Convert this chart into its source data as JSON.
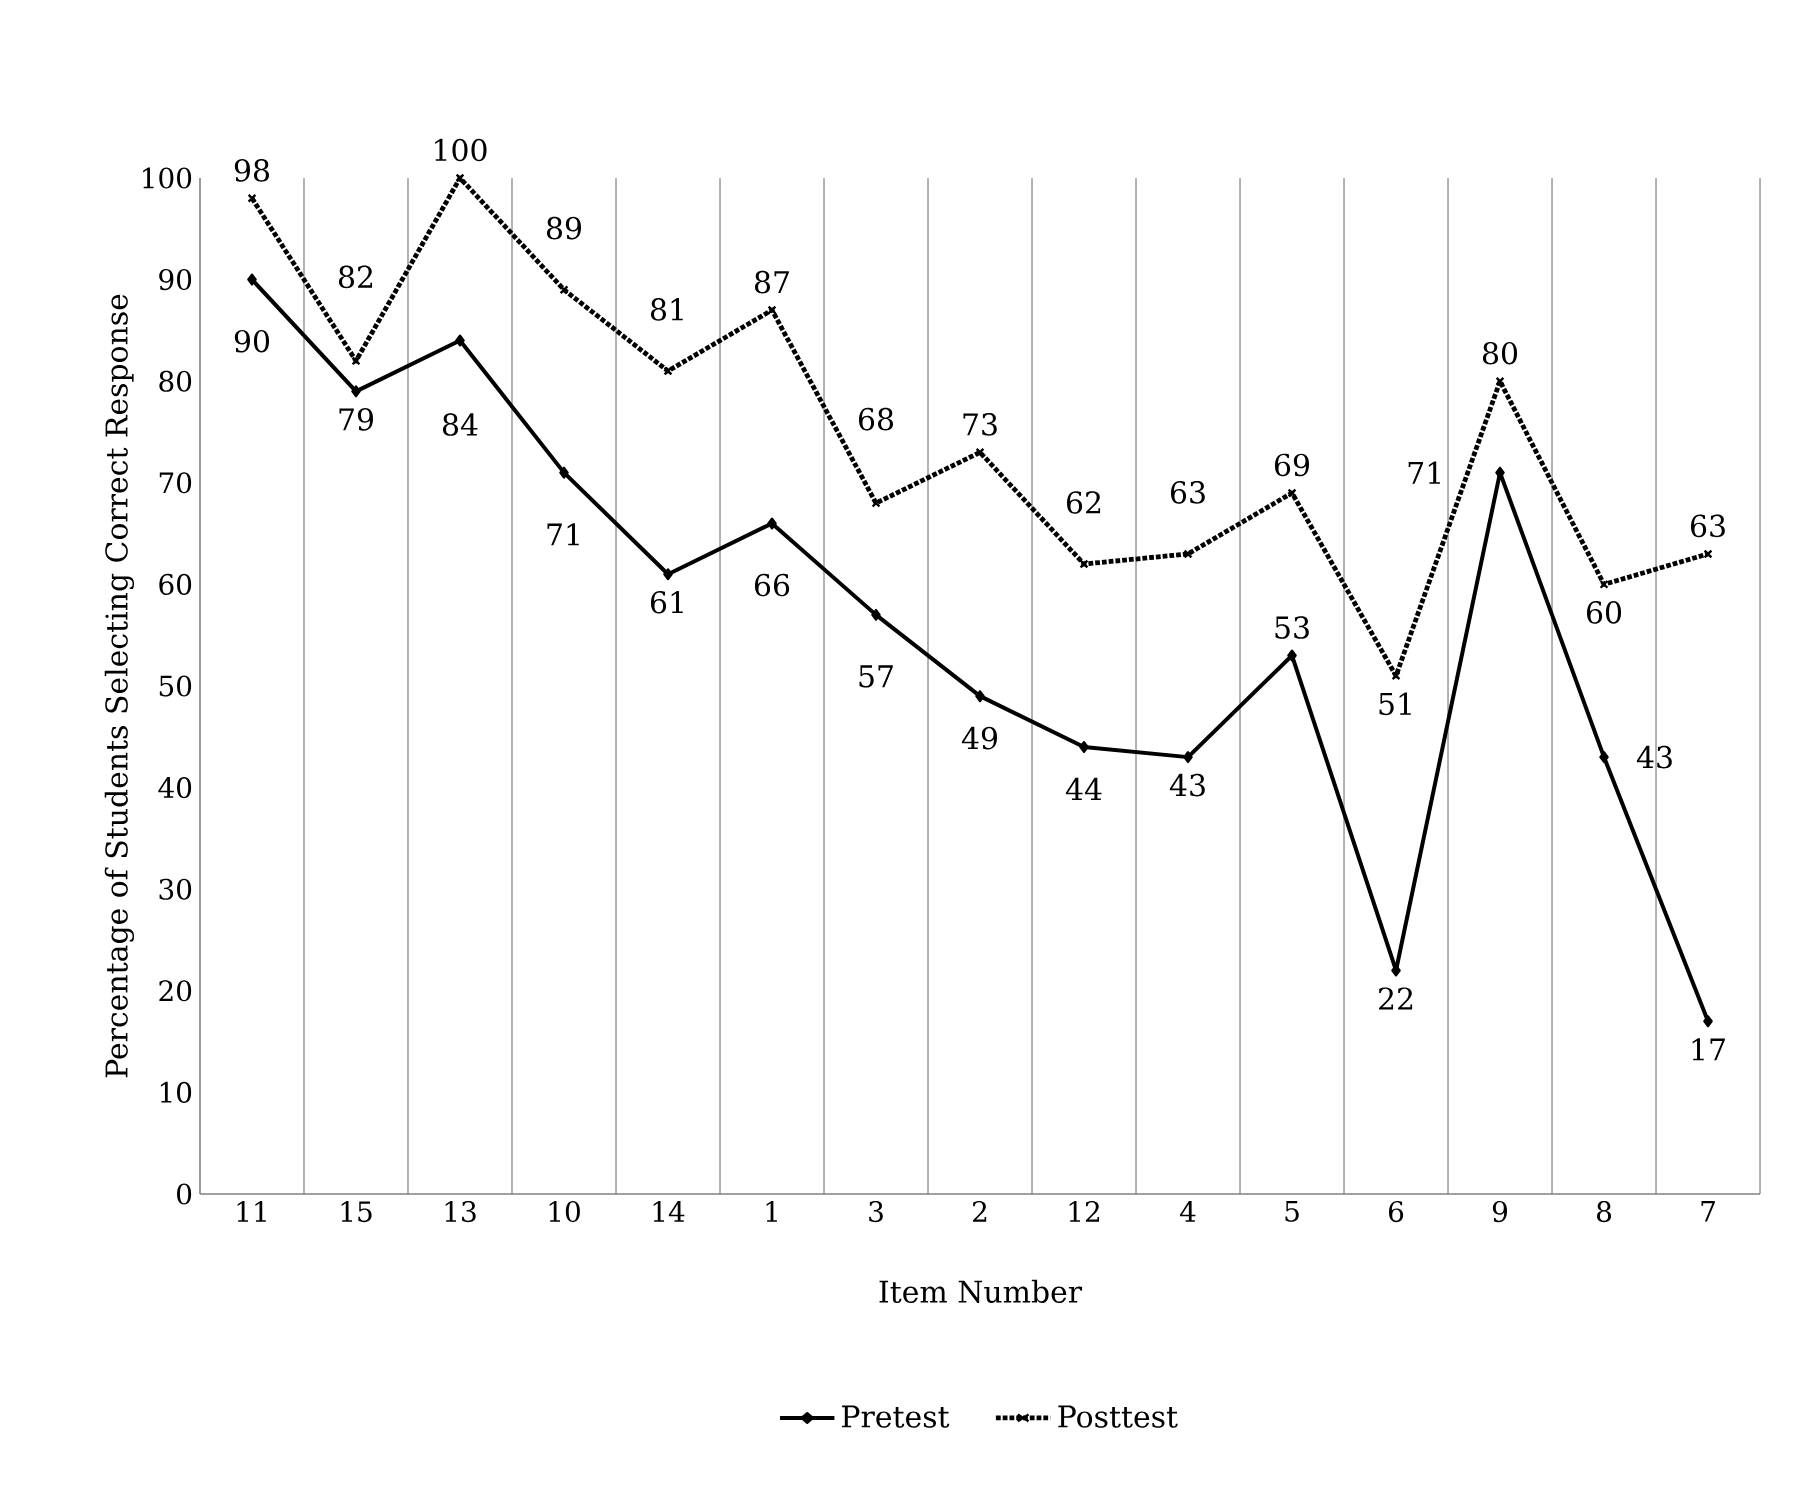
{
  "chart_data": {
    "type": "line",
    "xlabel": "Item Number",
    "ylabel": "Percentage of Students Selecting Correct Response",
    "categories": [
      "11",
      "15",
      "13",
      "10",
      "14",
      "1",
      "3",
      "2",
      "12",
      "4",
      "5",
      "6",
      "9",
      "8",
      "7"
    ],
    "series": [
      {
        "name": "Pretest",
        "color": "#000000",
        "marker": "diamond",
        "line_style": "solid",
        "values": [
          90,
          79,
          84,
          71,
          61,
          66,
          57,
          49,
          44,
          43,
          53,
          22,
          71,
          43,
          17
        ]
      },
      {
        "name": "Posttest",
        "color": "#000000",
        "marker": "cross",
        "line_style": "dotted",
        "values": [
          98,
          82,
          100,
          89,
          81,
          87,
          68,
          73,
          62,
          63,
          69,
          51,
          80,
          60,
          63
        ]
      }
    ],
    "ylim": [
      0,
      100
    ],
    "yticks": [
      0,
      10,
      20,
      30,
      40,
      50,
      60,
      70,
      80,
      90,
      100
    ],
    "grid": "x",
    "legend": "bottom",
    "data_labels": true
  }
}
